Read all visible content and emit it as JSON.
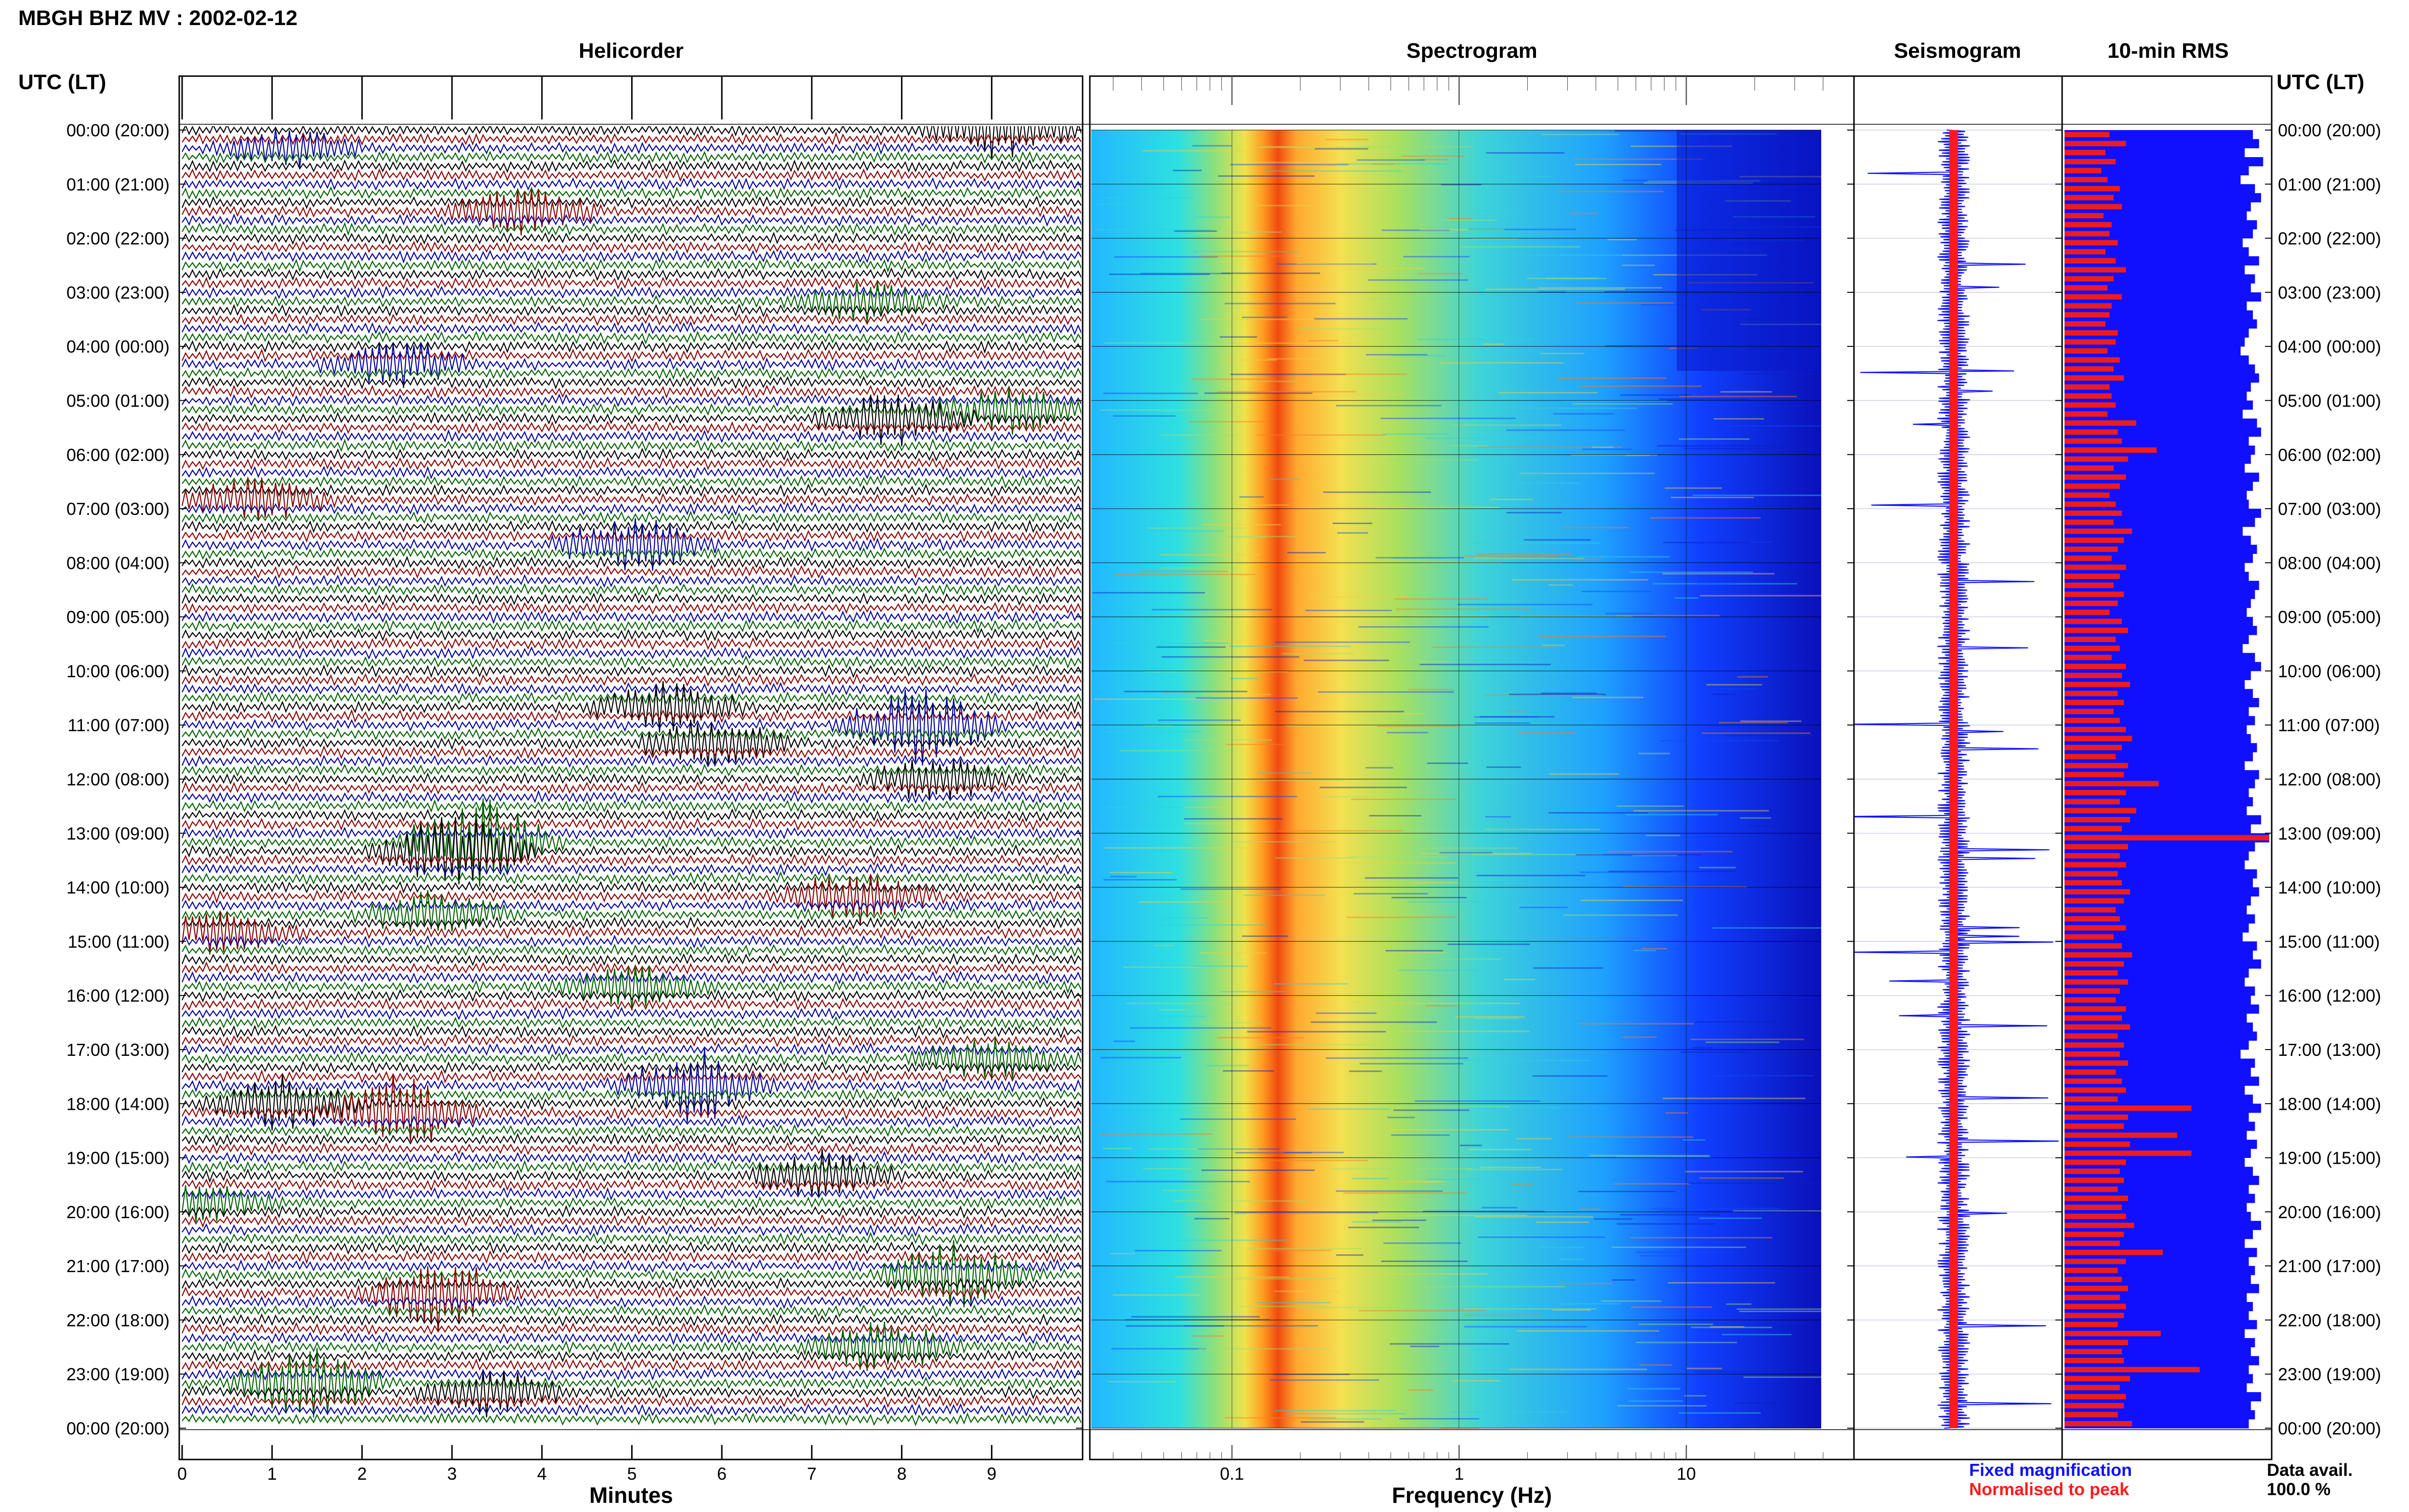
{
  "header": {
    "title": "MBGH BHZ MV : 2002-02-12"
  },
  "panels": {
    "helicorder": "Helicorder",
    "spectrogram": "Spectrogram",
    "seismogram": "Seismogram",
    "rms": "10-min RMS"
  },
  "time_axis_label": "UTC (LT)",
  "time_labels": [
    "00:00 (20:00)",
    "01:00 (21:00)",
    "02:00 (22:00)",
    "03:00 (23:00)",
    "04:00 (00:00)",
    "05:00 (01:00)",
    "06:00 (02:00)",
    "07:00 (03:00)",
    "08:00 (04:00)",
    "09:00 (05:00)",
    "10:00 (06:00)",
    "11:00 (07:00)",
    "12:00 (08:00)",
    "13:00 (09:00)",
    "14:00 (10:00)",
    "15:00 (11:00)",
    "16:00 (12:00)",
    "17:00 (13:00)",
    "18:00 (14:00)",
    "19:00 (15:00)",
    "20:00 (16:00)",
    "21:00 (17:00)",
    "22:00 (18:00)",
    "23:00 (19:00)",
    "00:00 (20:00)"
  ],
  "helicorder_xaxis": {
    "label": "Minutes",
    "ticks": [
      "0",
      "1",
      "2",
      "3",
      "4",
      "5",
      "6",
      "7",
      "8",
      "9"
    ]
  },
  "spectrogram_xaxis": {
    "label": "Frequency (Hz)",
    "ticks": [
      "0.1",
      "1",
      "10"
    ]
  },
  "legend": {
    "fixed": "Fixed magnification",
    "normalised": "Normalised to peak",
    "fixed_color": "#1010ff",
    "normalised_color": "#ff1a1a"
  },
  "data_avail": {
    "label": "Data avail.",
    "value": "100.0 %"
  },
  "colors": {
    "trace_cycle": [
      "#000000",
      "#8b0000",
      "#0000a0",
      "#006400"
    ],
    "rms_blue": "#1010ff",
    "rms_red": "#ee1c1c",
    "spectrogram_colormap": "jet"
  },
  "chart_data": [
    {
      "type": "line",
      "title": "Helicorder",
      "xlabel": "Minutes",
      "xlim": [
        0,
        10
      ],
      "rows": 144,
      "row_minutes": 10,
      "events": [
        {
          "row": 0,
          "minute": 9.1,
          "color": "#8b0000",
          "amp": 1.6
        },
        {
          "row": 2,
          "minute": 1.2,
          "color": "#0000a0",
          "amp": 1.0
        },
        {
          "row": 9,
          "minute": 3.8,
          "color": "#006400",
          "amp": 1.2
        },
        {
          "row": 19,
          "minute": 7.6,
          "color": "#0000a0",
          "amp": 1.0
        },
        {
          "row": 26,
          "minute": 2.4,
          "color": "#000000",
          "amp": 1.2
        },
        {
          "row": 32,
          "minute": 7.9,
          "color": "#0000a0",
          "amp": 1.6
        },
        {
          "row": 31,
          "minute": 9.2,
          "color": "#006400",
          "amp": 1.2
        },
        {
          "row": 41,
          "minute": 0.8,
          "color": "#8b0000",
          "amp": 1.2
        },
        {
          "row": 46,
          "minute": 5.0,
          "color": "#000000",
          "amp": 1.6
        },
        {
          "row": 64,
          "minute": 5.4,
          "color": "#0000a0",
          "amp": 1.3
        },
        {
          "row": 66,
          "minute": 8.2,
          "color": "#000000",
          "amp": 2.0
        },
        {
          "row": 68,
          "minute": 5.9,
          "color": "#8b0000",
          "amp": 1.4
        },
        {
          "row": 72,
          "minute": 8.4,
          "color": "#000000",
          "amp": 1.3
        },
        {
          "row": 79,
          "minute": 3.3,
          "color": "#0000a0",
          "amp": 2.6
        },
        {
          "row": 80,
          "minute": 3.0,
          "color": "#006400",
          "amp": 2.0
        },
        {
          "row": 85,
          "minute": 7.5,
          "color": "#006400",
          "amp": 1.4
        },
        {
          "row": 87,
          "minute": 2.8,
          "color": "#000000",
          "amp": 1.2
        },
        {
          "row": 89,
          "minute": 0.5,
          "color": "#006400",
          "amp": 1.2
        },
        {
          "row": 95,
          "minute": 5.0,
          "color": "#0000a0",
          "amp": 1.1
        },
        {
          "row": 103,
          "minute": 9.0,
          "color": "#006400",
          "amp": 1.2
        },
        {
          "row": 106,
          "minute": 5.7,
          "color": "#006400",
          "amp": 2.0
        },
        {
          "row": 108,
          "minute": 1.1,
          "color": "#006400",
          "amp": 1.6
        },
        {
          "row": 109,
          "minute": 2.4,
          "color": "#000000",
          "amp": 2.0
        },
        {
          "row": 116,
          "minute": 7.1,
          "color": "#8b0000",
          "amp": 1.2
        },
        {
          "row": 119,
          "minute": 0.2,
          "color": "#000000",
          "amp": 1.0
        },
        {
          "row": 127,
          "minute": 8.6,
          "color": "#000000",
          "amp": 1.8
        },
        {
          "row": 129,
          "minute": 2.8,
          "color": "#006400",
          "amp": 2.0
        },
        {
          "row": 135,
          "minute": 7.8,
          "color": "#000000",
          "amp": 1.4
        },
        {
          "row": 139,
          "minute": 1.4,
          "color": "#0000a0",
          "amp": 2.0
        },
        {
          "row": 140,
          "minute": 3.4,
          "color": "#0000a0",
          "amp": 1.2
        }
      ]
    },
    {
      "type": "heatmap",
      "title": "Spectrogram",
      "xlabel": "Frequency (Hz)",
      "xscale": "log",
      "xlim": [
        0.02,
        40
      ],
      "peak_band_hz": [
        0.2,
        0.3
      ],
      "colormap": "jet"
    },
    {
      "type": "line",
      "title": "Seismogram",
      "series": [
        {
          "name": "Fixed magnification",
          "color": "#1010ff"
        },
        {
          "name": "Normalised to peak",
          "color": "#ff1a1a"
        }
      ]
    },
    {
      "type": "bar",
      "title": "10-min RMS",
      "orientation": "horizontal",
      "bins": 144,
      "bin_minutes": 10,
      "series": [
        {
          "name": "Fixed magnification",
          "color": "#1010ff",
          "values": [
            0.92,
            0.95,
            0.88,
            0.97,
            0.9,
            0.86,
            0.93,
            0.96,
            0.91,
            0.89,
            0.94,
            0.92,
            0.87,
            0.9,
            0.95,
            0.88,
            0.93,
            0.91,
            0.96,
            0.89,
            0.92,
            0.94,
            0.9,
            0.88,
            0.86,
            0.9,
            0.93,
            0.95,
            0.91,
            0.89,
            0.92,
            0.87,
            0.94,
            0.96,
            0.9,
            0.93,
            0.91,
            0.88,
            0.95,
            0.92,
            0.89,
            0.9,
            0.96,
            0.93,
            0.87,
            0.91,
            0.94,
            0.92,
            0.88,
            0.9,
            0.95,
            0.93,
            0.91,
            0.89,
            0.92,
            0.94,
            0.9,
            0.87,
            0.93,
            0.96,
            0.91,
            0.88,
            0.92,
            0.95,
            0.9,
            0.93,
            0.89,
            0.91,
            0.94,
            0.92,
            0.88,
            0.95,
            0.93,
            0.9,
            0.92,
            0.89,
            0.96,
            0.91,
            1.0,
            0.93,
            0.9,
            0.88,
            0.94,
            0.92,
            0.95,
            0.91,
            0.89,
            0.93,
            0.9,
            0.87,
            0.94,
            0.92,
            0.96,
            0.9,
            0.88,
            0.93,
            0.91,
            0.95,
            0.89,
            0.92,
            0.94,
            0.9,
            0.86,
            0.93,
            0.91,
            0.95,
            0.88,
            0.92,
            0.96,
            0.9,
            0.93,
            0.89,
            0.94,
            0.91,
            0.88,
            0.92,
            0.95,
            0.9,
            0.93,
            0.89,
            0.91,
            0.96,
            0.92,
            0.88,
            0.94,
            0.9,
            0.93,
            0.91,
            0.95,
            0.89,
            0.92,
            0.9,
            0.94,
            0.88,
            0.93,
            0.91,
            0.95,
            0.9,
            0.92,
            0.89,
            0.96,
            0.91,
            0.93,
            0.9
          ]
        },
        {
          "name": "Normalised to peak",
          "color": "#ee1c1c",
          "values": [
            0.22,
            0.3,
            0.2,
            0.25,
            0.18,
            0.21,
            0.27,
            0.24,
            0.28,
            0.19,
            0.23,
            0.22,
            0.26,
            0.2,
            0.25,
            0.3,
            0.24,
            0.21,
            0.28,
            0.23,
            0.22,
            0.2,
            0.26,
            0.25,
            0.21,
            0.27,
            0.24,
            0.29,
            0.22,
            0.23,
            0.25,
            0.21,
            0.35,
            0.26,
            0.28,
            0.45,
            0.31,
            0.24,
            0.3,
            0.27,
            0.22,
            0.25,
            0.28,
            0.24,
            0.33,
            0.29,
            0.26,
            0.23,
            0.3,
            0.27,
            0.24,
            0.29,
            0.26,
            0.22,
            0.28,
            0.31,
            0.25,
            0.27,
            0.23,
            0.3,
            0.28,
            0.32,
            0.26,
            0.29,
            0.24,
            0.27,
            0.3,
            0.33,
            0.28,
            0.25,
            0.31,
            0.29,
            0.46,
            0.3,
            0.27,
            0.35,
            0.32,
            0.28,
            1.0,
            0.31,
            0.27,
            0.3,
            0.26,
            0.28,
            0.32,
            0.29,
            0.25,
            0.27,
            0.3,
            0.24,
            0.28,
            0.33,
            0.29,
            0.26,
            0.31,
            0.27,
            0.25,
            0.3,
            0.28,
            0.32,
            0.26,
            0.29,
            0.27,
            0.31,
            0.25,
            0.28,
            0.3,
            0.26,
            0.62,
            0.31,
            0.29,
            0.55,
            0.32,
            0.62,
            0.3,
            0.27,
            0.29,
            0.26,
            0.31,
            0.28,
            0.3,
            0.34,
            0.29,
            0.27,
            0.48,
            0.3,
            0.26,
            0.28,
            0.31,
            0.27,
            0.3,
            0.29,
            0.26,
            0.47,
            0.31,
            0.28,
            0.29,
            0.66,
            0.32,
            0.27,
            0.3,
            0.29,
            0.26,
            0.33
          ]
        }
      ]
    }
  ]
}
